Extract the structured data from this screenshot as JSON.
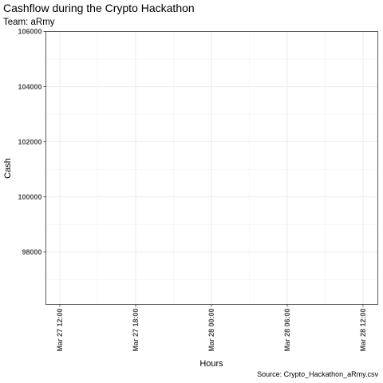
{
  "chart_data": {
    "type": "line",
    "title": "Cashflow during the Crypto Hackathon",
    "subtitle": "Team: aRmy",
    "caption": "Source: Crypto_Hackathon_aRmy.csv",
    "xlabel": "Hours",
    "ylabel": "Cash",
    "x_ticks": [
      "Mar 27 12:00",
      "Mar 27 18:00",
      "Mar 28 00:00",
      "Mar 28 06:00",
      "Mar 28 12:00"
    ],
    "y_ticks": [
      98000,
      100000,
      102000,
      104000,
      106000
    ],
    "y_tick_labels": [
      "98000",
      "100000",
      "102000",
      "104000",
      "106000"
    ],
    "ylim": [
      96100,
      106000
    ],
    "series": [],
    "grid": true,
    "theme": "bw"
  }
}
